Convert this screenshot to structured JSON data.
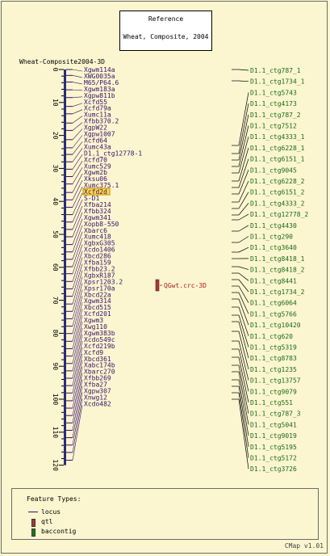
{
  "title_box": {
    "line1": "Reference",
    "line2": "Wheat, Composite, 2004"
  },
  "map": {
    "name": "Wheat-Composite2004-3D",
    "ticks": [
      "0",
      "10",
      "20",
      "30",
      "40",
      "50",
      "60",
      "70",
      "80",
      "90",
      "100",
      "110",
      "120"
    ],
    "markers": [
      {
        "label": "Xgwm114a",
        "pos": 0.0
      },
      {
        "label": "XWG0035a",
        "pos": 1.6
      },
      {
        "label": "M65/P64.6",
        "pos": 3.4
      },
      {
        "label": "Xgwm183a",
        "pos": 5.5
      },
      {
        "label": "Xgpw811b",
        "pos": 7.6
      },
      {
        "label": "Xcfd55",
        "pos": 10.0
      },
      {
        "label": "Xcfd79a",
        "pos": 12.0
      },
      {
        "label": "Xumc11a",
        "pos": 14.5
      },
      {
        "label": "Xfbb370.2",
        "pos": 16.5
      },
      {
        "label": "XgpW22",
        "pos": 19.0
      },
      {
        "label": "Xgpw1007",
        "pos": 21.2
      },
      {
        "label": "Xcfd64",
        "pos": 23.0
      },
      {
        "label": "Xumc43a",
        "pos": 25.0
      },
      {
        "label": "D1.1_ctg12778-1",
        "pos": 27.0
      },
      {
        "label": "Xcfd70",
        "pos": 29.0
      },
      {
        "label": "Xumc529",
        "pos": 31.0
      },
      {
        "label": "Xgwm2b",
        "pos": 33.3
      },
      {
        "label": "Xksu06",
        "pos": 35.3
      },
      {
        "label": "Xumc375.1",
        "pos": 37.3
      },
      {
        "label": "Xcfd2d",
        "pos": 39.3,
        "highlight": true
      },
      {
        "label": "S-D1",
        "pos": 41.3
      },
      {
        "label": "Xfba214",
        "pos": 43.3
      },
      {
        "label": "Xfbb324",
        "pos": 45.3
      },
      {
        "label": "Xgwm341",
        "pos": 47.4
      },
      {
        "label": "Xopb8-550",
        "pos": 49.4
      },
      {
        "label": "Xbarc6",
        "pos": 51.4
      },
      {
        "label": "Xumc418",
        "pos": 53.4
      },
      {
        "label": "XgbxG305",
        "pos": 55.3
      },
      {
        "label": "Xcdo1406",
        "pos": 57.4
      },
      {
        "label": "Xbcd286",
        "pos": 59.4
      },
      {
        "label": "Xfba159",
        "pos": 61.4
      },
      {
        "label": "Xfbb23.2",
        "pos": 63.5
      },
      {
        "label": "XgbxR187",
        "pos": 65.5
      },
      {
        "label": "Xpsr1203.2",
        "pos": 67.5
      },
      {
        "label": "Xpsr170a",
        "pos": 69.5
      },
      {
        "label": "Xbcd22a",
        "pos": 71.5
      },
      {
        "label": "Xgwm314",
        "pos": 73.6
      },
      {
        "label": "Xbcd515",
        "pos": 75.6
      },
      {
        "label": "Xcfd201",
        "pos": 77.6
      },
      {
        "label": "Xgwm3",
        "pos": 79.6
      },
      {
        "label": "Xwg110",
        "pos": 81.6
      },
      {
        "label": "Xgwm383b",
        "pos": 83.6
      },
      {
        "label": "Xcdo549c",
        "pos": 85.6
      },
      {
        "label": "Xcfd219b",
        "pos": 87.6
      },
      {
        "label": "Xcfd9",
        "pos": 89.7
      },
      {
        "label": "Xbcd361",
        "pos": 91.7
      },
      {
        "label": "Xabc174b",
        "pos": 93.7
      },
      {
        "label": "Xbarc270",
        "pos": 95.7
      },
      {
        "label": "Xfbb269",
        "pos": 97.7
      },
      {
        "label": "Xfba27",
        "pos": 99.7
      },
      {
        "label": "Xgpw307",
        "pos": 101.7
      },
      {
        "label": "Xnwg12",
        "pos": 103.7
      },
      {
        "label": "Xcdo482",
        "pos": 105.8
      }
    ],
    "qtl": {
      "label": "QGwt.crc-3D",
      "color": "#b83232"
    }
  },
  "contigs": [
    {
      "label": "D1.1_ctg787_1"
    },
    {
      "label": "D1.1_ctg1734_1"
    },
    {
      "label": "D1.1_ctg5743"
    },
    {
      "label": "D1.1_ctg4173"
    },
    {
      "label": "D1.1_ctg787_2"
    },
    {
      "label": "D1.1_ctg7512"
    },
    {
      "label": "D1.1_ctg4333_1"
    },
    {
      "label": "D1.1_ctg6228_1"
    },
    {
      "label": "D1.1_ctg6151_1"
    },
    {
      "label": "D1.1_ctg9045"
    },
    {
      "label": "D1.1_ctg6228_2"
    },
    {
      "label": "D1.1_ctg6151_2"
    },
    {
      "label": "D1.1_ctg4333_2"
    },
    {
      "label": "D1.1_ctg12778_2"
    },
    {
      "label": "D1.1_ctg4430"
    },
    {
      "label": "D1.1_ctg290"
    },
    {
      "label": "D1.1_ctg3640"
    },
    {
      "label": "D1.1_ctg8418_1"
    },
    {
      "label": "D1.1_ctg8418_2"
    },
    {
      "label": "D1.1_ctg8441"
    },
    {
      "label": "D1.1_ctg1734_2"
    },
    {
      "label": "D1.1_ctg6064"
    },
    {
      "label": "D1.1_ctg5766"
    },
    {
      "label": "D1.1_ctg10420"
    },
    {
      "label": "D1.1_ctg620"
    },
    {
      "label": "D1.1_ctg5319"
    },
    {
      "label": "D1.1_ctg8783"
    },
    {
      "label": "D1.1_ctg1235"
    },
    {
      "label": "D1.1_ctg13757"
    },
    {
      "label": "D1.1_ctg9079"
    },
    {
      "label": "D1.1_ctg551"
    },
    {
      "label": "D1.1_ctg787_3"
    },
    {
      "label": "D1.1_ctg5041"
    },
    {
      "label": "D1.1_ctg9019"
    },
    {
      "label": "D1.1_ctg5195"
    },
    {
      "label": "D1.1_ctg5172"
    },
    {
      "label": "D1.1_ctg3726"
    }
  ],
  "legend": {
    "header": "Feature Types:",
    "items": [
      {
        "label": "locus",
        "color": "#3a0f6e",
        "kind": "line"
      },
      {
        "label": "qtl",
        "color": "#b83232",
        "kind": "bar"
      },
      {
        "label": "baccontig",
        "color": "#1a7a1a",
        "kind": "bar"
      }
    ]
  },
  "version": "CMap v1.01",
  "colors": {
    "background": "#fbf6cf",
    "marker_text": "#3a0f6e",
    "contig_text": "#1a6b1a",
    "highlight": "#ffd84a"
  }
}
